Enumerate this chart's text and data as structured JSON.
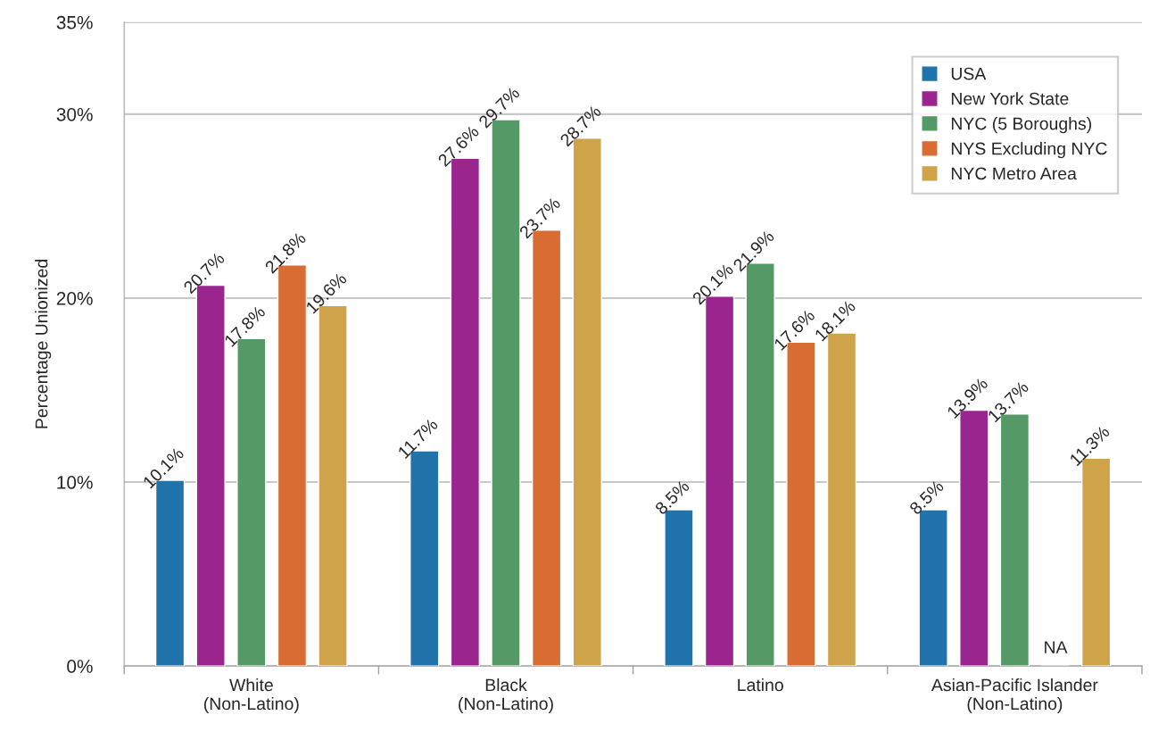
{
  "chart_data": {
    "type": "bar",
    "ylabel": "Percentage Unionized",
    "categories": [
      "White\n(Non-Latino)",
      "Black\n(Non-Latino)",
      "Latino",
      "Asian-Pacific Islander\n(Non-Latino)"
    ],
    "series": [
      {
        "name": "USA",
        "color": "#2074ab",
        "values": [
          10.1,
          11.7,
          8.5,
          8.5
        ],
        "value_labels": [
          "10.1%",
          "11.7%",
          "8.5%",
          "8.5%"
        ]
      },
      {
        "name": "New York State",
        "color": "#9b258f",
        "values": [
          20.7,
          27.6,
          20.1,
          13.9
        ],
        "value_labels": [
          "20.7%",
          "27.6%",
          "20.1%",
          "13.9%"
        ]
      },
      {
        "name": "NYC (5 Boroughs)",
        "color": "#559a66",
        "values": [
          17.8,
          29.7,
          21.9,
          13.7
        ],
        "value_labels": [
          "17.8%",
          "29.7%",
          "21.9%",
          "13.7%"
        ]
      },
      {
        "name": "NYS Excluding NYC",
        "color": "#d96c32",
        "values": [
          21.8,
          23.7,
          17.6,
          null
        ],
        "value_labels": [
          "21.8%",
          "23.7%",
          "17.6%",
          "NA"
        ]
      },
      {
        "name": "NYC Metro Area",
        "color": "#cfa349",
        "values": [
          19.6,
          28.7,
          18.1,
          11.3
        ],
        "value_labels": [
          "19.6%",
          "28.7%",
          "18.1%",
          "11.3%"
        ]
      }
    ],
    "ylim": [
      0,
      35
    ],
    "yticks": [
      {
        "value": 0,
        "label": "0%"
      },
      {
        "value": 10,
        "label": "10%"
      },
      {
        "value": 20,
        "label": "20%"
      },
      {
        "value": 30,
        "label": "30%"
      },
      {
        "value": 35,
        "label": "35%"
      }
    ],
    "grid": "y",
    "legend": "top right"
  }
}
